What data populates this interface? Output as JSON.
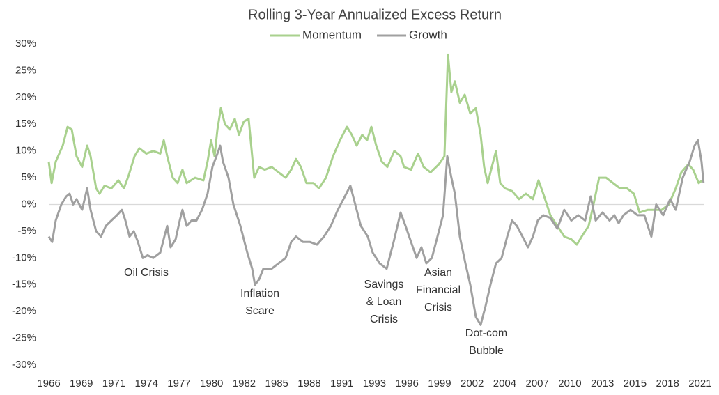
{
  "chart_data": {
    "type": "line",
    "title": "Rolling 3-Year Annualized Excess Return",
    "legend": "top",
    "grid": false,
    "xlim": [
      1966,
      2021.3
    ],
    "ylim": [
      -30,
      30
    ],
    "yticks": [
      {
        "value": 30,
        "label": "30%"
      },
      {
        "value": 25,
        "label": "25%"
      },
      {
        "value": 20,
        "label": "20%"
      },
      {
        "value": 15,
        "label": "15%"
      },
      {
        "value": 10,
        "label": "10%"
      },
      {
        "value": 5,
        "label": "5%"
      },
      {
        "value": 0,
        "label": "0%"
      },
      {
        "value": -5,
        "label": "-5%"
      },
      {
        "value": -10,
        "label": "-10%"
      },
      {
        "value": -15,
        "label": "-15%"
      },
      {
        "value": -20,
        "label": "-20%"
      },
      {
        "value": -25,
        "label": "-25%"
      },
      {
        "value": -30,
        "label": "-30%"
      }
    ],
    "xticks": [
      {
        "value": 1966,
        "label": "1966"
      },
      {
        "value": 1968.75,
        "label": "1969"
      },
      {
        "value": 1971.5,
        "label": "1971"
      },
      {
        "value": 1974.25,
        "label": "1974"
      },
      {
        "value": 1977,
        "label": "1977"
      },
      {
        "value": 1979.75,
        "label": "1980"
      },
      {
        "value": 1982.5,
        "label": "1982"
      },
      {
        "value": 1985.25,
        "label": "1985"
      },
      {
        "value": 1988,
        "label": "1988"
      },
      {
        "value": 1990.75,
        "label": "1991"
      },
      {
        "value": 1993.5,
        "label": "1993"
      },
      {
        "value": 1996.25,
        "label": "1996"
      },
      {
        "value": 1999,
        "label": "1999"
      },
      {
        "value": 2001.75,
        "label": "2002"
      },
      {
        "value": 2004.5,
        "label": "2004"
      },
      {
        "value": 2007.25,
        "label": "2007"
      },
      {
        "value": 2010,
        "label": "2010"
      },
      {
        "value": 2012.75,
        "label": "2013"
      },
      {
        "value": 2015.5,
        "label": "2015"
      },
      {
        "value": 2018.25,
        "label": "2018"
      },
      {
        "value": 2021,
        "label": "2021"
      }
    ],
    "annotations": [
      {
        "lines": [
          "Oil Crisis"
        ]
      },
      {
        "lines": [
          "Inflation",
          "Scare"
        ]
      },
      {
        "lines": [
          "Savings",
          "& Loan",
          "Crisis"
        ]
      },
      {
        "lines": [
          "Asian",
          "Financial",
          "Crisis"
        ]
      },
      {
        "lines": [
          "Dot-com",
          "Bubble"
        ]
      }
    ],
    "series": [
      {
        "name": "Momentum",
        "color": "#a9d18e",
        "x": [
          1966.0,
          1966.24,
          1966.59,
          1967.18,
          1967.59,
          1967.94,
          1968.35,
          1968.82,
          1969.24,
          1969.53,
          1970.0,
          1970.29,
          1970.71,
          1971.29,
          1971.88,
          1972.35,
          1972.76,
          1973.24,
          1973.65,
          1974.24,
          1974.82,
          1975.41,
          1975.71,
          1976.0,
          1976.47,
          1976.88,
          1977.29,
          1977.65,
          1978.35,
          1979.06,
          1979.41,
          1979.71,
          1980.0,
          1980.24,
          1980.53,
          1980.88,
          1981.29,
          1981.71,
          1982.06,
          1982.47,
          1982.88,
          1983.35,
          1983.76,
          1984.24,
          1984.82,
          1985.41,
          1986.0,
          1986.47,
          1986.88,
          1987.29,
          1987.76,
          1988.35,
          1988.82,
          1989.41,
          1990.0,
          1990.59,
          1991.18,
          1991.59,
          1992.0,
          1992.47,
          1992.88,
          1993.24,
          1993.65,
          1994.12,
          1994.59,
          1995.18,
          1995.71,
          1996.0,
          1996.59,
          1997.18,
          1997.65,
          1998.24,
          1998.94,
          1999.41,
          1999.71,
          2000.0,
          2000.29,
          2000.71,
          2001.12,
          2001.59,
          2002.06,
          2002.47,
          2002.76,
          2003.06,
          2003.53,
          2003.76,
          2004.12,
          2004.53,
          2005.12,
          2005.71,
          2006.29,
          2006.88,
          2007.35,
          2007.76,
          2008.35,
          2008.94,
          2009.53,
          2010.12,
          2010.59,
          2011.0,
          2011.59,
          2012.0,
          2012.47,
          2013.06,
          2013.65,
          2014.24,
          2014.82,
          2015.41,
          2015.88,
          2016.59,
          2017.18,
          2017.76,
          2018.35,
          2018.94,
          2019.41,
          2020.0,
          2020.41,
          2020.88,
          2021.18
        ],
        "values": [
          8,
          4,
          8,
          11,
          14.5,
          14,
          9,
          7,
          11,
          9,
          3,
          2,
          3.5,
          3,
          4.5,
          3,
          5.5,
          9,
          10.5,
          9.5,
          10,
          9.5,
          12,
          9,
          5,
          4,
          6.5,
          4,
          5,
          4.5,
          8,
          12,
          9,
          14,
          18,
          15,
          14,
          16,
          13,
          15.5,
          16,
          5,
          7,
          6.5,
          7,
          6,
          5,
          6.5,
          8.5,
          7,
          4,
          4,
          3,
          5,
          9,
          12,
          14.5,
          13,
          11,
          13,
          12,
          14.5,
          11,
          8,
          7,
          10,
          9,
          7,
          6.5,
          9.5,
          7,
          6,
          7.5,
          9,
          28,
          21,
          23,
          19,
          20.5,
          17,
          18,
          13,
          7,
          4,
          8,
          10,
          4,
          3,
          2.5,
          1,
          2,
          1,
          4.5,
          2,
          -2,
          -4,
          -6,
          -6.5,
          -7.5,
          -6,
          -4,
          0,
          5,
          5,
          4,
          3,
          3,
          2,
          -1.5,
          -1,
          -1,
          -1,
          0,
          3,
          6,
          7.5,
          6.5,
          4,
          4.5
        ]
      },
      {
        "name": "Growth",
        "color": "#a0a0a0",
        "x": [
          1966.0,
          1966.29,
          1966.59,
          1967.06,
          1967.47,
          1967.76,
          1968.06,
          1968.35,
          1968.82,
          1969.24,
          1969.53,
          1970.0,
          1970.41,
          1970.82,
          1971.29,
          1971.76,
          1972.18,
          1972.47,
          1972.82,
          1973.18,
          1973.53,
          1973.94,
          1974.35,
          1974.82,
          1975.41,
          1975.76,
          1976.0,
          1976.29,
          1976.71,
          1977.06,
          1977.29,
          1977.65,
          1978.06,
          1978.47,
          1978.94,
          1979.41,
          1979.82,
          1980.24,
          1980.47,
          1980.71,
          1981.18,
          1981.59,
          1982.18,
          1982.76,
          1983.18,
          1983.41,
          1983.76,
          1984.12,
          1984.82,
          1985.41,
          1986.0,
          1986.47,
          1986.88,
          1987.47,
          1988.06,
          1988.65,
          1989.24,
          1989.82,
          1990.41,
          1991.0,
          1991.47,
          1991.88,
          1992.35,
          1992.94,
          1993.35,
          1993.94,
          1994.53,
          1995.12,
          1995.71,
          1996.12,
          1996.59,
          1997.06,
          1997.47,
          1997.88,
          1998.35,
          1998.82,
          1999.29,
          1999.65,
          2000.0,
          2000.29,
          2000.71,
          2001.18,
          2001.59,
          2002.06,
          2002.47,
          2002.88,
          2003.29,
          2003.76,
          2004.24,
          2004.71,
          2005.12,
          2005.53,
          2006.0,
          2006.47,
          2006.88,
          2007.29,
          2007.76,
          2008.35,
          2008.94,
          2009.53,
          2010.12,
          2010.71,
          2011.29,
          2011.76,
          2012.18,
          2012.76,
          2013.35,
          2013.76,
          2014.12,
          2014.53,
          2015.12,
          2015.71,
          2016.29,
          2016.88,
          2017.29,
          2017.88,
          2018.47,
          2018.94,
          2019.53,
          2020.12,
          2020.53,
          2020.82,
          2021.12,
          2021.29
        ],
        "values": [
          -6,
          -7,
          -3,
          0,
          1.5,
          2,
          0,
          1,
          -1,
          3,
          -1,
          -5,
          -6,
          -4,
          -3,
          -2,
          -1,
          -3,
          -6,
          -5,
          -7,
          -10,
          -9.5,
          -10,
          -9,
          -6,
          -4,
          -8,
          -6.5,
          -3,
          -1,
          -4,
          -3,
          -3,
          -1,
          2,
          7,
          9.5,
          11,
          8,
          5,
          0,
          -4,
          -9,
          -12,
          -15,
          -14,
          -12,
          -12,
          -11,
          -10,
          -7,
          -6,
          -7,
          -7,
          -7.5,
          -6,
          -4,
          -1,
          1.5,
          3.5,
          0,
          -4,
          -6,
          -9,
          -11,
          -12,
          -7,
          -1.5,
          -4,
          -7,
          -10,
          -8,
          -11,
          -10,
          -6,
          -2,
          9,
          5,
          2,
          -6,
          -11,
          -15,
          -21,
          -22.5,
          -19,
          -15,
          -11,
          -10,
          -6,
          -3,
          -4,
          -6,
          -8,
          -6,
          -3,
          -2,
          -2.5,
          -4.5,
          -1,
          -3,
          -2,
          -3,
          1.5,
          -3,
          -1.5,
          -3,
          -2,
          -3.5,
          -2,
          -1,
          -2,
          -2,
          -6,
          0,
          -2,
          1,
          -1,
          5,
          8,
          11,
          12,
          8,
          4
        ]
      }
    ]
  }
}
